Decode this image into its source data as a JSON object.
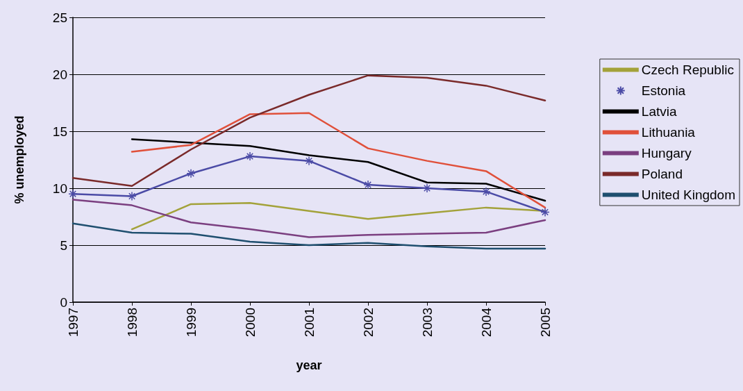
{
  "chart_data": {
    "type": "line",
    "xlabel": "year",
    "ylabel": "% unemployed",
    "categories": [
      "1997",
      "1998",
      "1999",
      "2000",
      "2001",
      "2002",
      "2003",
      "2004",
      "2005"
    ],
    "ylim": [
      0,
      25
    ],
    "yticks": [
      0,
      5,
      10,
      15,
      20,
      25
    ],
    "grid": "y",
    "legend": "right",
    "marker": "none",
    "series": [
      {
        "name": "Czech Republic",
        "color": "#a3a23a",
        "values": [
          null,
          6.4,
          8.6,
          8.7,
          8.0,
          7.3,
          7.8,
          8.3,
          8.0
        ]
      },
      {
        "name": "Estonia",
        "color": "#4b4ba6",
        "marker": "cross",
        "values": [
          9.5,
          9.3,
          11.3,
          12.8,
          12.4,
          10.3,
          10.0,
          9.7,
          7.9
        ]
      },
      {
        "name": "Latvia",
        "color": "#000000",
        "values": [
          null,
          14.3,
          14.0,
          13.7,
          12.9,
          12.3,
          10.5,
          10.4,
          8.9
        ]
      },
      {
        "name": "Lithuania",
        "color": "#e0503a",
        "values": [
          null,
          13.2,
          13.8,
          16.5,
          16.6,
          13.5,
          12.4,
          11.5,
          8.3
        ]
      },
      {
        "name": "Hungary",
        "color": "#7b3f80",
        "values": [
          9.0,
          8.5,
          7.0,
          6.4,
          5.7,
          5.9,
          6.0,
          6.1,
          7.2
        ]
      },
      {
        "name": "Poland",
        "color": "#7a2a2a",
        "values": [
          10.9,
          10.2,
          13.4,
          16.2,
          18.2,
          19.9,
          19.7,
          19.0,
          17.7
        ]
      },
      {
        "name": "United Kingdom",
        "color": "#1f4f6f",
        "values": [
          6.9,
          6.1,
          6.0,
          5.3,
          5.0,
          5.2,
          4.9,
          4.7,
          4.7
        ]
      }
    ]
  }
}
